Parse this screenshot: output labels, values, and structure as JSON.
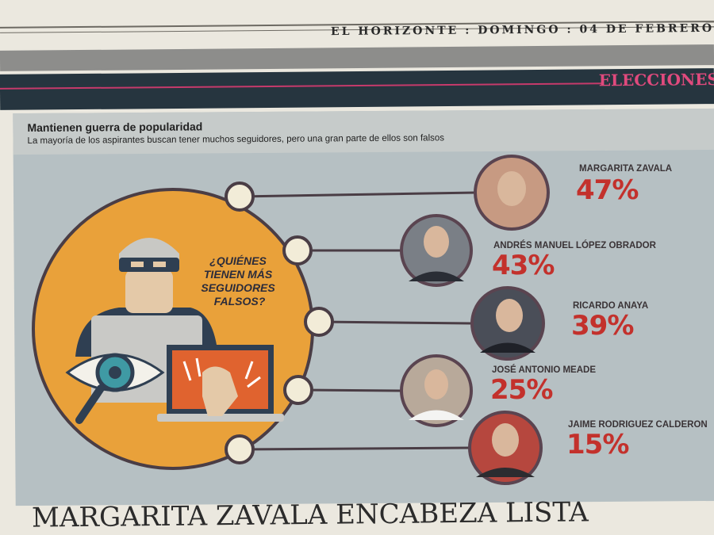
{
  "masthead": {
    "dateline": "EL HORIZONTE : DOMINGO : 04 DE FEBRERO",
    "section": "ELECCIONES"
  },
  "infographic": {
    "title": "Mantienen guerra de popularidad",
    "subtitle": "La mayoría de los aspirantes buscan tener muchos seguidores, pero una gran parte de ellos son falsos",
    "question": [
      "¿QUIÉNES",
      "TIENEN MÁS",
      "SEGUIDORES",
      "FALSOS?"
    ],
    "colors": {
      "circle": "#e9a13a",
      "percent": "#c3312c",
      "panel": "#b6c0c3"
    },
    "candidates": [
      {
        "name": "MARGARITA ZAVALA",
        "percent": "47%"
      },
      {
        "name": "ANDRÉS MANUEL LÓPEZ OBRADOR",
        "percent": "43%"
      },
      {
        "name": "RICARDO ANAYA",
        "percent": "39%"
      },
      {
        "name": "JOSÉ ANTONIO MEADE",
        "percent": "25%"
      },
      {
        "name": "JAIME RODRÍGUEZ CALDERÓN",
        "percent": "15%"
      }
    ]
  },
  "headline": "MARGARITA ZAVALA ENCABEZA LISTA"
}
